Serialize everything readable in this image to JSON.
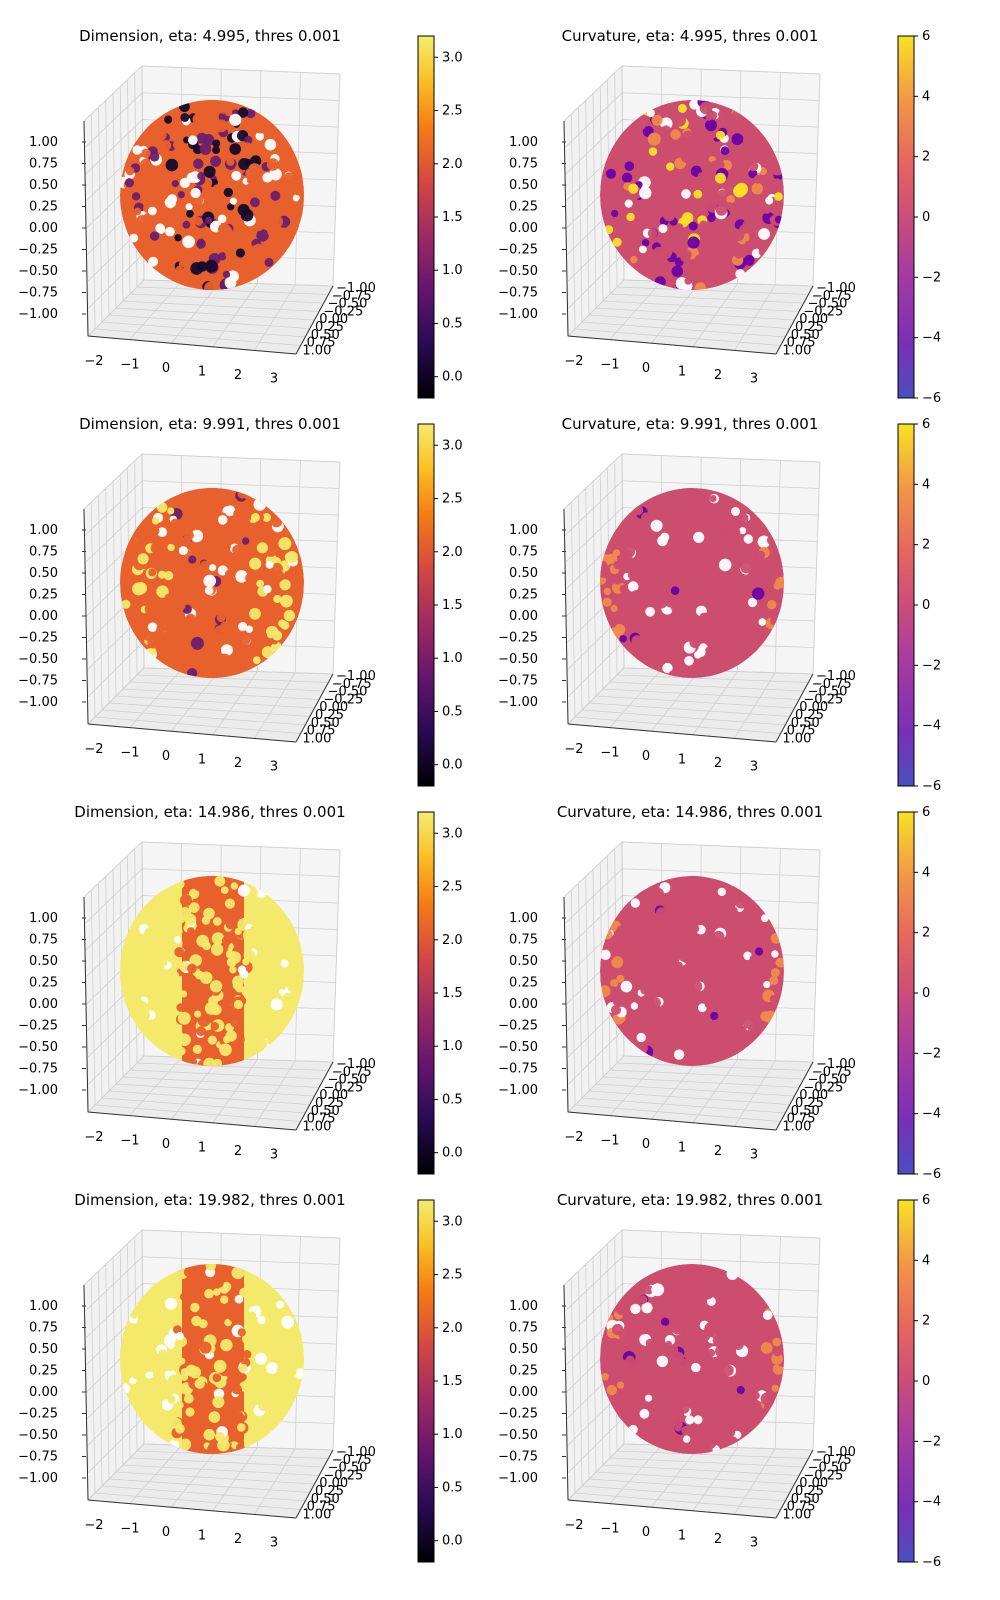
{
  "figure": {
    "panels": [
      {
        "title": "Dimension, eta: 4.995, thres 0.001",
        "kind": "dimension",
        "pattern": "mixed"
      },
      {
        "title": "Curvature, eta: 4.995, thres 0.001",
        "kind": "curvature",
        "pattern": "noisy"
      },
      {
        "title": "Dimension, eta: 9.991, thres 0.001",
        "kind": "dimension",
        "pattern": "orange_main"
      },
      {
        "title": "Curvature, eta: 9.991, thres 0.001",
        "kind": "curvature",
        "pattern": "smooth"
      },
      {
        "title": "Dimension, eta: 14.986, thres 0.001",
        "kind": "dimension",
        "pattern": "yellow_band"
      },
      {
        "title": "Curvature, eta: 14.986, thres 0.001",
        "kind": "curvature",
        "pattern": "smooth"
      },
      {
        "title": "Dimension, eta: 19.982, thres 0.001",
        "kind": "dimension",
        "pattern": "yellow_band"
      },
      {
        "title": "Curvature, eta: 19.982, thres 0.001",
        "kind": "curvature",
        "pattern": "smooth"
      }
    ]
  },
  "chart_data": {
    "type": "scatter",
    "projection": "3d",
    "layout": "4 rows x 2 columns",
    "point_cloud": "unit sphere",
    "axes": {
      "x_ticks": [
        "−2",
        "−1",
        "0",
        "1",
        "2",
        "3"
      ],
      "y_ticks": [
        "−1.00",
        "−0.75",
        "−0.50",
        "−0.25",
        "0.00",
        "0.25",
        "0.50",
        "0.75",
        "1.00"
      ],
      "z_ticks": [
        "−1.00",
        "−0.75",
        "−0.50",
        "−0.25",
        "0.00",
        "0.25",
        "0.50",
        "0.75",
        "1.00"
      ],
      "xlim": [
        -2.3,
        3.3
      ],
      "ylim": [
        -1.1,
        1.1
      ],
      "zlim": [
        -1.1,
        1.1
      ],
      "grid": true
    },
    "colorbars": {
      "dimension": {
        "colormap": "inferno",
        "range": [
          -0.2,
          3.2
        ],
        "ticks": [
          "0.0",
          "0.5",
          "1.0",
          "1.5",
          "2.0",
          "2.5",
          "3.0"
        ],
        "tick_values": [
          0,
          0.5,
          1,
          1.5,
          2,
          2.5,
          3
        ]
      },
      "curvature": {
        "colormap": "plasma",
        "range": [
          -6,
          6
        ],
        "ticks": [
          "−6",
          "−4",
          "−2",
          "0",
          "2",
          "4",
          "6"
        ],
        "tick_values": [
          -6,
          -4,
          -2,
          0,
          2,
          4,
          6
        ]
      }
    },
    "series": [
      {
        "panel": "Dimension, eta: 4.995",
        "dominant_value": 2.0,
        "other_values": [
          0.0,
          0.5,
          1.0
        ]
      },
      {
        "panel": "Curvature, eta: 4.995",
        "dominant_value": 0.5,
        "range_seen": [
          -6,
          6
        ]
      },
      {
        "panel": "Dimension, eta: 9.991",
        "dominant_value": 2.0,
        "other_values": [
          3.0
        ]
      },
      {
        "panel": "Curvature, eta: 9.991",
        "dominant_value": 0.5,
        "range_seen": [
          -2,
          3
        ]
      },
      {
        "panel": "Dimension, eta: 14.986",
        "dominant_value": 3.0,
        "band_value": 2.0
      },
      {
        "panel": "Curvature, eta: 14.986",
        "dominant_value": 0.5,
        "range_seen": [
          -1,
          3
        ]
      },
      {
        "panel": "Dimension, eta: 19.982",
        "dominant_value": 3.0,
        "band_value": 2.0
      },
      {
        "panel": "Curvature, eta: 19.982",
        "dominant_value": 0.5,
        "range_seen": [
          -1,
          3
        ]
      }
    ],
    "colors": {
      "dim_orange": "#e8602c",
      "dim_yellow": "#f3e96b",
      "dim_purple": "#6b1f6e",
      "dim_black": "#140b2e",
      "curv_mid": "#cc4d6e",
      "curv_orange": "#f08a4b",
      "curv_yellow": "#f7e225",
      "curv_purple": "#6a00a8"
    }
  }
}
